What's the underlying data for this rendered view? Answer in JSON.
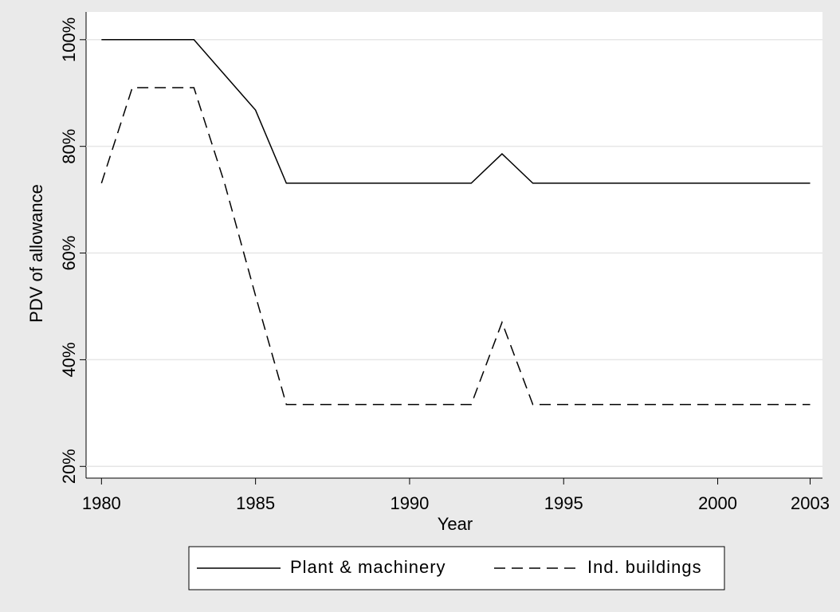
{
  "chart_data": {
    "type": "line",
    "x_label": "Year",
    "y_label": "PDV of allowance",
    "x": [
      1980,
      1981,
      1982,
      1983,
      1984,
      1985,
      1986,
      1987,
      1988,
      1989,
      1990,
      1991,
      1992,
      1993,
      1994,
      1995,
      1996,
      1997,
      1998,
      1999,
      2000,
      2001,
      2002,
      2003
    ],
    "series": [
      {
        "name": "Plant & machinery",
        "color": "#000000",
        "style": "solid",
        "values": [
          100,
          100,
          100,
          100,
          93.4,
          86.8,
          73.1,
          73.1,
          73.1,
          73.1,
          73.1,
          73.1,
          73.1,
          78.6,
          73.1,
          73.1,
          73.1,
          73.1,
          73.1,
          73.1,
          73.1,
          73.1,
          73.1,
          73.1
        ]
      },
      {
        "name": "Ind. buildings",
        "color": "#000000",
        "style": "dashed",
        "values": [
          73.1,
          91,
          91,
          91,
          73,
          52,
          31.6,
          31.6,
          31.6,
          31.6,
          31.6,
          31.6,
          31.6,
          47,
          31.6,
          31.6,
          31.6,
          31.6,
          31.6,
          31.6,
          31.6,
          31.6,
          31.6,
          31.6
        ]
      }
    ],
    "xlim": [
      1979.5,
      2003.4
    ],
    "ylim": [
      17.8,
      105.2
    ],
    "xticks": [
      1980,
      1985,
      1990,
      1995,
      2000,
      2003
    ],
    "yticks": [
      {
        "value": 20,
        "label": "20%"
      },
      {
        "value": 40,
        "label": "40%"
      },
      {
        "value": 60,
        "label": "60%"
      },
      {
        "value": 80,
        "label": "80%"
      },
      {
        "value": 100,
        "label": "100%"
      }
    ],
    "grid": true,
    "legend": "bottom"
  }
}
